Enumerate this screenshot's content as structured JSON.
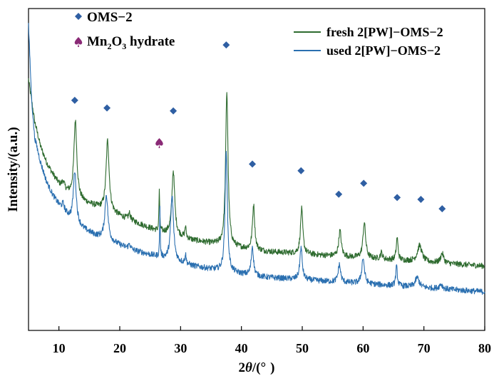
{
  "chart_data": {
    "type": "line",
    "xlabel_parts": [
      "2",
      "θ",
      "/(°",
      ")"
    ],
    "ylabel": "Intensity/(a.u.)",
    "xlim": [
      5,
      80
    ],
    "xticks": [
      10,
      20,
      30,
      40,
      50,
      60,
      70,
      80
    ],
    "y_axis_ticks": false,
    "grid": false,
    "legend_position": "top-right",
    "colors": {
      "fresh": "#2e6b2f",
      "used": "#2a6fb0",
      "oms_marker": "#2f5fa3",
      "mn_marker": "#8a2a76"
    },
    "series": [
      {
        "name": "fresh 2[PW]−OMS−2",
        "color": "#2e6b2f",
        "baseline": [
          [
            5,
            0.78
          ],
          [
            6,
            0.65
          ],
          [
            7,
            0.57
          ],
          [
            8,
            0.52
          ],
          [
            9,
            0.485
          ],
          [
            10,
            0.455
          ],
          [
            11,
            0.435
          ],
          [
            12,
            0.42
          ],
          [
            14,
            0.4
          ],
          [
            16,
            0.385
          ],
          [
            18,
            0.37
          ],
          [
            20,
            0.355
          ],
          [
            22,
            0.34
          ],
          [
            24,
            0.325
          ],
          [
            26,
            0.31
          ],
          [
            28,
            0.3
          ],
          [
            30,
            0.29
          ],
          [
            32,
            0.28
          ],
          [
            35,
            0.27
          ],
          [
            38,
            0.26
          ],
          [
            40,
            0.255
          ],
          [
            44,
            0.245
          ],
          [
            48,
            0.24
          ],
          [
            52,
            0.235
          ],
          [
            56,
            0.23
          ],
          [
            60,
            0.225
          ],
          [
            64,
            0.22
          ],
          [
            68,
            0.215
          ],
          [
            72,
            0.21
          ],
          [
            76,
            0.205
          ],
          [
            80,
            0.2
          ]
        ],
        "peaks": [
          [
            10.7,
            0.02,
            0.25
          ],
          [
            12.7,
            0.24,
            0.28
          ],
          [
            18.0,
            0.22,
            0.3
          ],
          [
            21.6,
            0.02,
            0.2
          ],
          [
            26.5,
            0.13,
            0.07
          ],
          [
            28.8,
            0.2,
            0.28
          ],
          [
            30.8,
            0.035,
            0.12
          ],
          [
            37.6,
            0.48,
            0.24
          ],
          [
            42.0,
            0.14,
            0.22
          ],
          [
            49.9,
            0.14,
            0.23
          ],
          [
            56.2,
            0.08,
            0.25
          ],
          [
            60.2,
            0.11,
            0.26
          ],
          [
            63.0,
            0.02,
            0.2
          ],
          [
            65.6,
            0.07,
            0.17
          ],
          [
            69.3,
            0.05,
            0.45
          ],
          [
            73.0,
            0.03,
            0.3
          ]
        ]
      },
      {
        "name": "used 2[PW]−OMS−2",
        "color": "#2a6fb0",
        "baseline": [
          [
            5,
            0.95
          ],
          [
            5.5,
            0.72
          ],
          [
            6,
            0.6
          ],
          [
            7,
            0.52
          ],
          [
            8,
            0.46
          ],
          [
            9,
            0.42
          ],
          [
            10,
            0.39
          ],
          [
            11,
            0.365
          ],
          [
            12,
            0.345
          ],
          [
            14,
            0.315
          ],
          [
            16,
            0.295
          ],
          [
            18,
            0.28
          ],
          [
            20,
            0.265
          ],
          [
            22,
            0.25
          ],
          [
            24,
            0.24
          ],
          [
            26,
            0.23
          ],
          [
            28,
            0.22
          ],
          [
            30,
            0.21
          ],
          [
            32,
            0.2
          ],
          [
            35,
            0.19
          ],
          [
            38,
            0.18
          ],
          [
            40,
            0.175
          ],
          [
            44,
            0.165
          ],
          [
            48,
            0.16
          ],
          [
            52,
            0.155
          ],
          [
            56,
            0.15
          ],
          [
            60,
            0.145
          ],
          [
            64,
            0.14
          ],
          [
            68,
            0.135
          ],
          [
            72,
            0.13
          ],
          [
            76,
            0.125
          ],
          [
            80,
            0.12
          ]
        ],
        "peaks": [
          [
            10.7,
            0.02,
            0.25
          ],
          [
            12.6,
            0.16,
            0.28
          ],
          [
            17.8,
            0.14,
            0.3
          ],
          [
            21.6,
            0.015,
            0.2
          ],
          [
            26.6,
            0.15,
            0.06
          ],
          [
            28.6,
            0.2,
            0.28
          ],
          [
            30.8,
            0.03,
            0.12
          ],
          [
            37.5,
            0.38,
            0.22
          ],
          [
            41.8,
            0.09,
            0.22
          ],
          [
            49.8,
            0.1,
            0.23
          ],
          [
            56.1,
            0.055,
            0.24
          ],
          [
            60.0,
            0.08,
            0.26
          ],
          [
            65.5,
            0.06,
            0.16
          ],
          [
            68.9,
            0.03,
            0.4
          ],
          [
            72.8,
            0.015,
            0.3
          ]
        ]
      }
    ],
    "markers": [
      {
        "x": 12.6,
        "y": 0.715,
        "kind": "oms"
      },
      {
        "x": 17.9,
        "y": 0.691,
        "kind": "oms"
      },
      {
        "x": 26.5,
        "y": 0.584,
        "kind": "mn"
      },
      {
        "x": 28.8,
        "y": 0.682,
        "kind": "oms"
      },
      {
        "x": 37.5,
        "y": 0.887,
        "kind": "oms"
      },
      {
        "x": 41.8,
        "y": 0.517,
        "kind": "oms"
      },
      {
        "x": 49.8,
        "y": 0.496,
        "kind": "oms"
      },
      {
        "x": 56.0,
        "y": 0.423,
        "kind": "oms"
      },
      {
        "x": 60.1,
        "y": 0.457,
        "kind": "oms"
      },
      {
        "x": 65.6,
        "y": 0.413,
        "kind": "oms"
      },
      {
        "x": 69.5,
        "y": 0.407,
        "kind": "oms"
      },
      {
        "x": 73.0,
        "y": 0.378,
        "kind": "oms"
      }
    ],
    "marker_legend": [
      {
        "kind": "oms",
        "label": "OMS−2"
      },
      {
        "kind": "mn",
        "label_parts": [
          "Mn",
          "2",
          "O",
          "3",
          " hydrate"
        ]
      }
    ]
  }
}
